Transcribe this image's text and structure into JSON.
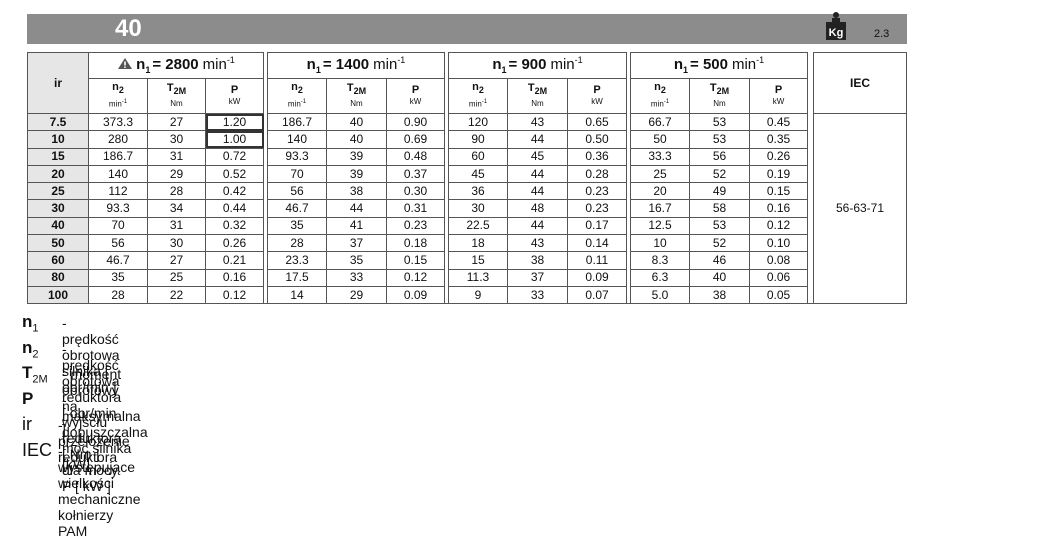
{
  "header": {
    "size": "40",
    "weight": "2.3"
  },
  "table": {
    "ir_header": "ir",
    "iec_header": "IEC",
    "iec_value": "56-63-71",
    "groups": [
      {
        "symbol": "n",
        "sub": "1",
        "speed": "= 2800",
        "unit": "min",
        "sup": "-1"
      },
      {
        "symbol": "n",
        "sub": "1",
        "speed": "= 1400",
        "unit": "min",
        "sup": "-1"
      },
      {
        "symbol": "n",
        "sub": "1",
        "speed": "= 900",
        "unit": "min",
        "sup": "-1"
      },
      {
        "symbol": "n",
        "sub": "1",
        "speed": "= 500",
        "unit": "min",
        "sup": "-1"
      }
    ],
    "columns": [
      {
        "symbol": "n",
        "sub": "2",
        "unit": "min",
        "unit_sup": "-1"
      },
      {
        "symbol": "T",
        "sub": "2M",
        "unit": "Nm",
        "unit_sup": ""
      },
      {
        "symbol": "P",
        "sub": "",
        "unit": "kW",
        "unit_sup": ""
      }
    ],
    "rows": [
      [
        "7.5",
        "373.3",
        "27",
        "1.20",
        "186.7",
        "40",
        "0.90",
        "120",
        "43",
        "0.65",
        "66.7",
        "53",
        "0.45"
      ],
      [
        "10",
        "280",
        "30",
        "1.00",
        "140",
        "40",
        "0.69",
        "90",
        "44",
        "0.50",
        "50",
        "53",
        "0.35"
      ],
      [
        "15",
        "186.7",
        "31",
        "0.72",
        "93.3",
        "39",
        "0.48",
        "60",
        "45",
        "0.36",
        "33.3",
        "56",
        "0.26"
      ],
      [
        "20",
        "140",
        "29",
        "0.52",
        "70",
        "39",
        "0.37",
        "45",
        "44",
        "0.28",
        "25",
        "52",
        "0.19"
      ],
      [
        "25",
        "112",
        "28",
        "0.42",
        "56",
        "38",
        "0.30",
        "36",
        "44",
        "0.23",
        "20",
        "49",
        "0.15"
      ],
      [
        "30",
        "93.3",
        "34",
        "0.44",
        "46.7",
        "44",
        "0.31",
        "30",
        "48",
        "0.23",
        "16.7",
        "58",
        "0.16"
      ],
      [
        "40",
        "70",
        "31",
        "0.32",
        "35",
        "41",
        "0.23",
        "22.5",
        "44",
        "0.17",
        "12.5",
        "53",
        "0.12"
      ],
      [
        "50",
        "56",
        "30",
        "0.26",
        "28",
        "37",
        "0.18",
        "18",
        "43",
        "0.14",
        "10",
        "52",
        "0.10"
      ],
      [
        "60",
        "46.7",
        "27",
        "0.21",
        "23.3",
        "35",
        "0.15",
        "15",
        "38",
        "0.11",
        "8.3",
        "46",
        "0.08"
      ],
      [
        "80",
        "35",
        "25",
        "0.16",
        "17.5",
        "33",
        "0.12",
        "11.3",
        "37",
        "0.09",
        "6.3",
        "40",
        "0.06"
      ],
      [
        "100",
        "28",
        "22",
        "0.12",
        "14",
        "29",
        "0.09",
        "9",
        "33",
        "0.07",
        "5.0",
        "38",
        "0.05"
      ]
    ]
  },
  "legend": [
    {
      "symbol": "n",
      "sub": "1",
      "text": "- prędkość obrotowa silnika [ obr/min ]"
    },
    {
      "symbol": "n",
      "sub": "2",
      "text": "- prędkość obrotowa reduktora [ obr/min ]"
    },
    {
      "symbol": "T",
      "sub": "2M",
      "text": "- moment obrotowy na wyjściu reduktora [ Nm ] dla mocy P  [ kW ]"
    },
    {
      "symbol": "P",
      "sub": "",
      "text": "- maksymalna dopuszczalna moc silnika [kW]"
    },
    {
      "symbol": "ir",
      "sub": "",
      "text": "-  przełożenie reduktora"
    },
    {
      "symbol": "IEC",
      "sub": "",
      "text": "- występujące wielkości mechaniczne kołnierzy PAM"
    }
  ]
}
